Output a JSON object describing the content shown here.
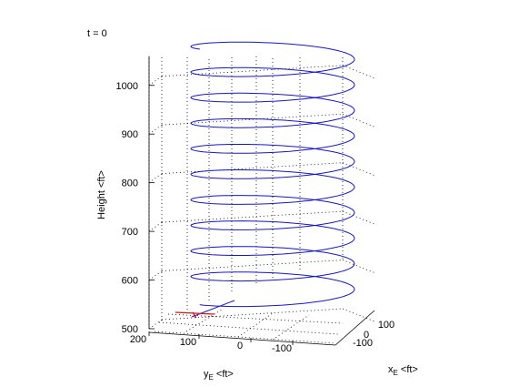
{
  "time_label": "t = 0",
  "colors": {
    "trajectory": "#1515ce",
    "vehicle_marker": "#e01010",
    "axes": "#000000",
    "background": "#ffffff"
  },
  "chart_data": {
    "type": "line3d",
    "title": "",
    "xlabel_main": "x",
    "xlabel_sub": "E",
    "xlabel_unit": " <ft>",
    "ylabel_main": "y",
    "ylabel_sub": "E",
    "ylabel_unit": " <ft>",
    "zlabel": "Height <ft>",
    "xlim": [
      -150,
      150
    ],
    "ylim": [
      -200,
      200
    ],
    "zlim": [
      500,
      1060
    ],
    "x_ticks": [
      "100",
      "0",
      "-100"
    ],
    "y_ticks": [
      "200",
      "100",
      "0",
      "-100"
    ],
    "z_ticks": [
      "1000",
      "900",
      "800",
      "700",
      "600",
      "500"
    ],
    "grid": true,
    "series": [
      {
        "kind": "helix",
        "description_values": {
          "center_x": 0,
          "center_y": 0,
          "radius_ft": 95,
          "z_start": 540,
          "z_end": 1065,
          "turns": 10
        }
      }
    ],
    "marker": {
      "x": 0,
      "y": 200,
      "z": 535
    }
  }
}
